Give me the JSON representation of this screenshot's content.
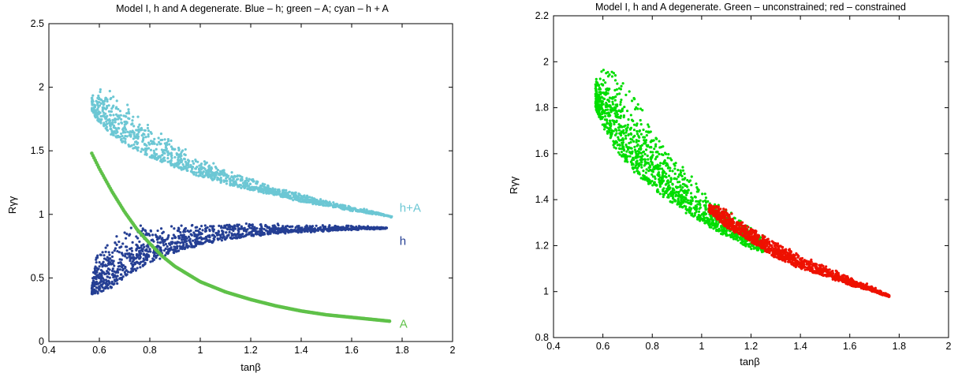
{
  "chart_data": [
    {
      "type": "scatter",
      "title": "Model I, h and A degenerate. Blue – h; green – A; cyan – h + A",
      "xlabel": "tanβ",
      "ylabel": "Rγγ",
      "xlim": [
        0.4,
        2.0
      ],
      "ylim": [
        0,
        2.5
      ],
      "xticks": [
        "0.4",
        "0.6",
        "0.8",
        "1",
        "1.2",
        "1.4",
        "1.6",
        "1.8",
        "2"
      ],
      "yticks": [
        "0",
        "0.5",
        "1",
        "1.5",
        "2",
        "2.5"
      ],
      "grid": false,
      "series": [
        {
          "name": "h+A",
          "color": "#6cc7d4",
          "upper_edge": [
            [
              0.57,
              1.93
            ],
            [
              0.6,
              2.0
            ],
            [
              0.65,
              1.97
            ],
            [
              0.7,
              1.9
            ],
            [
              0.8,
              1.72
            ],
            [
              0.9,
              1.57
            ],
            [
              1.0,
              1.45
            ],
            [
              1.1,
              1.36
            ],
            [
              1.2,
              1.28
            ],
            [
              1.3,
              1.22
            ],
            [
              1.4,
              1.16
            ],
            [
              1.5,
              1.11
            ],
            [
              1.6,
              1.06
            ],
            [
              1.7,
              1.02
            ],
            [
              1.76,
              0.98
            ]
          ],
          "lower_edge": [
            [
              0.57,
              1.8
            ],
            [
              0.6,
              1.72
            ],
            [
              0.65,
              1.62
            ],
            [
              0.7,
              1.55
            ],
            [
              0.8,
              1.45
            ],
            [
              0.9,
              1.37
            ],
            [
              1.0,
              1.3
            ],
            [
              1.1,
              1.24
            ],
            [
              1.2,
              1.19
            ],
            [
              1.3,
              1.15
            ],
            [
              1.4,
              1.1
            ],
            [
              1.5,
              1.07
            ],
            [
              1.6,
              1.03
            ],
            [
              1.7,
              1.0
            ],
            [
              1.76,
              0.98
            ]
          ]
        },
        {
          "name": "h",
          "color": "#253f94",
          "upper_edge": [
            [
              0.57,
              0.5
            ],
            [
              0.6,
              0.78
            ],
            [
              0.65,
              0.88
            ],
            [
              0.7,
              0.92
            ],
            [
              0.8,
              0.93
            ],
            [
              1.0,
              0.93
            ],
            [
              1.2,
              0.93
            ],
            [
              1.4,
              0.92
            ],
            [
              1.6,
              0.91
            ],
            [
              1.7,
              0.9
            ],
            [
              1.74,
              0.89
            ]
          ],
          "lower_edge": [
            [
              0.57,
              0.37
            ],
            [
              0.6,
              0.38
            ],
            [
              0.65,
              0.42
            ],
            [
              0.7,
              0.5
            ],
            [
              0.8,
              0.62
            ],
            [
              0.9,
              0.7
            ],
            [
              1.0,
              0.76
            ],
            [
              1.1,
              0.8
            ],
            [
              1.2,
              0.83
            ],
            [
              1.3,
              0.85
            ],
            [
              1.4,
              0.86
            ],
            [
              1.5,
              0.87
            ],
            [
              1.6,
              0.88
            ],
            [
              1.74,
              0.89
            ]
          ]
        },
        {
          "name": "A",
          "color": "#5fc149",
          "curve": [
            [
              0.57,
              1.48
            ],
            [
              0.6,
              1.36
            ],
            [
              0.65,
              1.18
            ],
            [
              0.7,
              1.02
            ],
            [
              0.75,
              0.88
            ],
            [
              0.8,
              0.77
            ],
            [
              0.85,
              0.67
            ],
            [
              0.9,
              0.59
            ],
            [
              1.0,
              0.47
            ],
            [
              1.1,
              0.39
            ],
            [
              1.2,
              0.33
            ],
            [
              1.3,
              0.28
            ],
            [
              1.4,
              0.24
            ],
            [
              1.5,
              0.21
            ],
            [
              1.6,
              0.19
            ],
            [
              1.7,
              0.17
            ],
            [
              1.75,
              0.16
            ]
          ]
        }
      ],
      "annotations": [
        {
          "text": "h+A",
          "x": 1.79,
          "y": 1.05,
          "color": "#6cc7d4"
        },
        {
          "text": "h",
          "x": 1.79,
          "y": 0.79,
          "color": "#253f94"
        },
        {
          "text": "A",
          "x": 1.79,
          "y": 0.14,
          "color": "#5fc149"
        }
      ]
    },
    {
      "type": "scatter",
      "title": "Model I, h and A degenerate. Green – unconstrained; red – constrained",
      "xlabel": "tanβ",
      "ylabel": "Rγγ",
      "xlim": [
        0.4,
        2.0
      ],
      "ylim": [
        0.8,
        2.2
      ],
      "xticks": [
        "0.4",
        "0.6",
        "0.8",
        "1",
        "1.2",
        "1.4",
        "1.6",
        "1.8",
        "2"
      ],
      "yticks": [
        "0.8",
        "1",
        "1.2",
        "1.4",
        "1.6",
        "1.8",
        "2",
        "2.2"
      ],
      "grid": false,
      "series": [
        {
          "color": "#00dd00",
          "upper_edge": [
            [
              0.57,
              1.93
            ],
            [
              0.6,
              2.0
            ],
            [
              0.65,
              1.97
            ],
            [
              0.7,
              1.9
            ],
            [
              0.8,
              1.72
            ],
            [
              0.9,
              1.57
            ],
            [
              1.0,
              1.45
            ],
            [
              1.1,
              1.36
            ],
            [
              1.2,
              1.28
            ],
            [
              1.25,
              1.25
            ]
          ],
          "lower_edge": [
            [
              0.57,
              1.8
            ],
            [
              0.6,
              1.72
            ],
            [
              0.65,
              1.62
            ],
            [
              0.7,
              1.55
            ],
            [
              0.8,
              1.45
            ],
            [
              0.9,
              1.37
            ],
            [
              1.0,
              1.3
            ],
            [
              1.1,
              1.24
            ],
            [
              1.2,
              1.19
            ],
            [
              1.25,
              1.17
            ]
          ]
        },
        {
          "color": "#ee1100",
          "upper_edge": [
            [
              1.03,
              1.38
            ],
            [
              1.1,
              1.36
            ],
            [
              1.2,
              1.28
            ],
            [
              1.3,
              1.22
            ],
            [
              1.4,
              1.16
            ],
            [
              1.5,
              1.11
            ],
            [
              1.6,
              1.06
            ],
            [
              1.7,
              1.02
            ],
            [
              1.76,
              0.98
            ]
          ],
          "lower_edge": [
            [
              1.03,
              1.35
            ],
            [
              1.1,
              1.28
            ],
            [
              1.2,
              1.22
            ],
            [
              1.3,
              1.15
            ],
            [
              1.4,
              1.1
            ],
            [
              1.5,
              1.07
            ],
            [
              1.6,
              1.03
            ],
            [
              1.7,
              1.0
            ],
            [
              1.76,
              0.98
            ]
          ]
        }
      ]
    }
  ]
}
